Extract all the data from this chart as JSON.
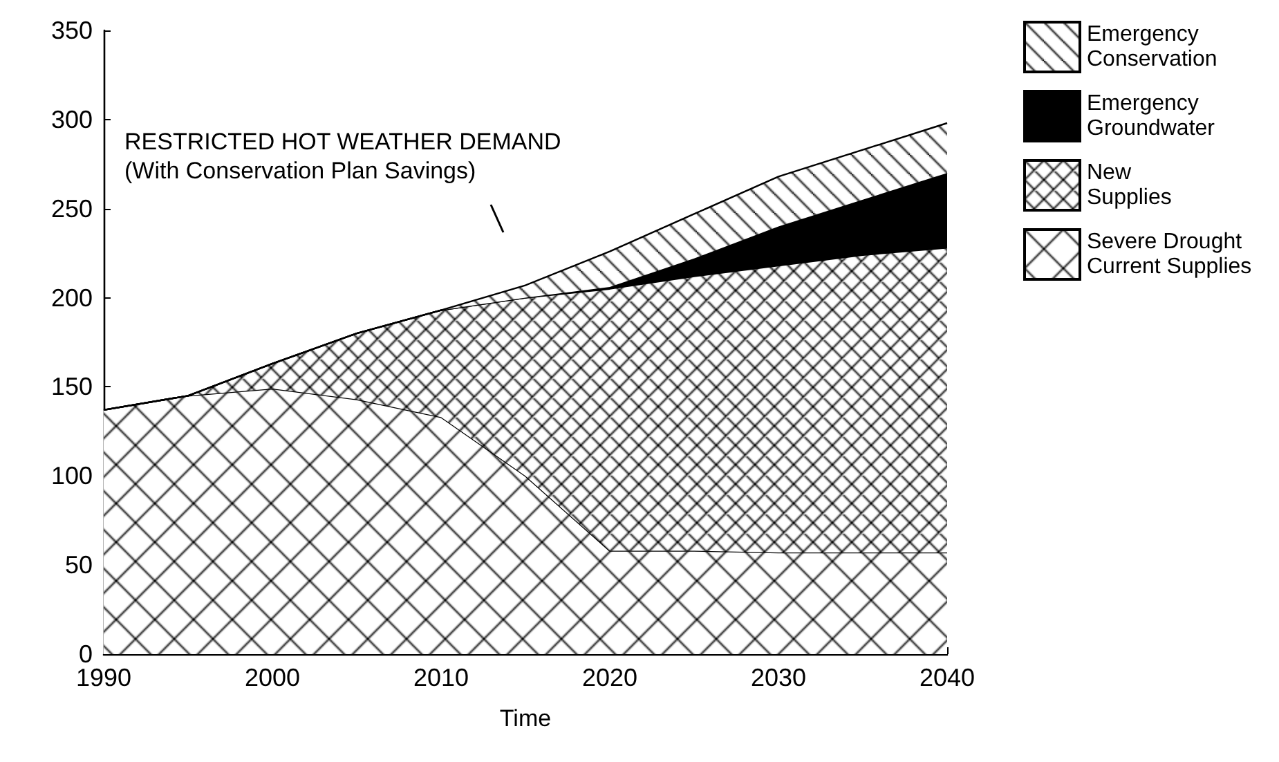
{
  "chart_data": {
    "type": "area",
    "stacked": true,
    "xlabel": "Time",
    "x": [
      1990,
      1995,
      2000,
      2005,
      2010,
      2015,
      2020,
      2025,
      2030,
      2035,
      2040
    ],
    "series": [
      {
        "name": "Severe Drought Current Supplies",
        "color": "#000000",
        "values": [
          137,
          145,
          149,
          143,
          133,
          100,
          58,
          58,
          57,
          57,
          57
        ]
      },
      {
        "name": "New Supplies",
        "color": "#000000",
        "values": [
          0,
          0,
          14,
          37,
          60,
          100,
          147,
          154,
          161,
          167,
          171
        ]
      },
      {
        "name": "Emergency Groundwater",
        "color": "#000000",
        "values": [
          0,
          0,
          0,
          0,
          0,
          0,
          1,
          10,
          22,
          31,
          42
        ]
      },
      {
        "name": "Emergency Conservation",
        "color": "#000000",
        "values": [
          0,
          0,
          0,
          0,
          0,
          7,
          20,
          25,
          28,
          28,
          28
        ]
      }
    ],
    "xlim": [
      1990,
      2040
    ],
    "xticks": [
      1990,
      2000,
      2010,
      2020,
      2030,
      2040
    ],
    "ylim": [
      0,
      350
    ],
    "yticks": [
      0,
      50,
      100,
      150,
      200,
      250,
      300,
      350
    ],
    "annotations": [
      "RESTRICTED HOT WEATHER DEMAND\n(With Conservation Plan Savings)"
    ],
    "legend": "right",
    "grid": false
  }
}
